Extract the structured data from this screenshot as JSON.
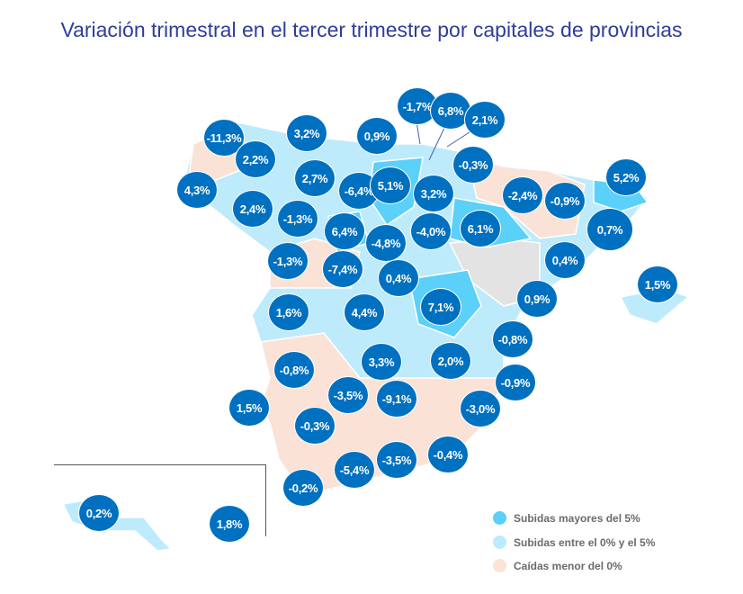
{
  "title": "Variación trimestral en el tercer trimestre por capitales de provincias",
  "colors": {
    "bubble": "#0070c0",
    "above5": "#5bd0f8",
    "between0and5": "#bdebfb",
    "below0": "#fae3d6",
    "nodata": "#e3e3e3"
  },
  "bubbles": [
    "-1,7%",
    "6,8%",
    "2,1%",
    "-11,3%",
    "3,2%",
    "0,9%",
    "2,2%",
    "-0,3%",
    "5,2%",
    "4,3%",
    "2,7%",
    "-6,4%",
    "5,1%",
    "3,2%",
    "-2,4%",
    "-0,9%",
    "2,4%",
    "-1,3%",
    "6,4%",
    "-4,8%",
    "-4,0%",
    "6,1%",
    "0,7%",
    "-1,3%",
    "-7,4%",
    "0,4%",
    "0,4%",
    "1,5%",
    "1,6%",
    "4,4%",
    "7,1%",
    "0,9%",
    "-0,8%",
    "-0,8%",
    "3,3%",
    "2,0%",
    "-0,9%",
    "1,5%",
    "-3,5%",
    "-9,1%",
    "-3,0%",
    "-0,3%",
    "-3,5%",
    "-0,4%",
    "-5,4%",
    "-0,2%",
    "0,2%",
    "1,8%"
  ],
  "legend": [
    {
      "label": "Subidas mayores del 5%",
      "color": "#5bd0f8"
    },
    {
      "label": "Subidas entre el 0% y el 5%",
      "color": "#bdebfb"
    },
    {
      "label": "Caídas menor del 0%",
      "color": "#fae3d6"
    }
  ]
}
